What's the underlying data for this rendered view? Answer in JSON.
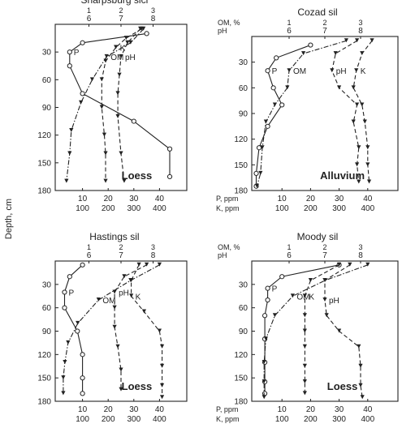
{
  "figure": {
    "ylabel": "Depth, cm",
    "bottom_label_p": "P, ppm",
    "bottom_label_k": "K, ppm",
    "top_label_om": "OM, %",
    "top_label_ph": "pH"
  },
  "chart_data": [
    {
      "type": "line",
      "title": "Sharpsburg sicl",
      "material": "Loess",
      "ylim": [
        0,
        180
      ],
      "yticks": [
        30,
        60,
        90,
        120,
        150,
        180
      ],
      "p_ticks": [
        10,
        20,
        30,
        40
      ],
      "k_ticks": [
        100,
        200,
        300,
        400
      ],
      "om_ticks": [
        1,
        2,
        3
      ],
      "ph_ticks": [
        6,
        7,
        8
      ],
      "series": [
        {
          "name": "P",
          "axis": "P",
          "depth": [
            10,
            20,
            30,
            45,
            75,
            105,
            135,
            165
          ],
          "values": [
            35,
            10,
            5,
            5,
            10,
            30,
            44,
            44
          ]
        },
        {
          "name": "K",
          "axis": "K",
          "depth": [
            5,
            15,
            25,
            40,
            60,
            90,
            120,
            140,
            170
          ],
          "values": [
            330,
            270,
            230,
            190,
            175,
            175,
            185,
            190,
            190
          ]
        },
        {
          "name": "pH",
          "axis": "pH",
          "depth": [
            5,
            20,
            35,
            55,
            75,
            100,
            140,
            170
          ],
          "values": [
            7.6,
            7.2,
            7.0,
            6.95,
            6.9,
            6.9,
            7.0,
            7.1
          ]
        },
        {
          "name": "OM",
          "axis": "OM",
          "depth": [
            5,
            20,
            35,
            60,
            85,
            115,
            140,
            170
          ],
          "values": [
            2.7,
            2.3,
            1.55,
            1.1,
            0.75,
            0.45,
            0.4,
            0.3
          ]
        }
      ]
    },
    {
      "type": "line",
      "title": "Cozad sil",
      "material": "Alluvium",
      "ylim": [
        0,
        180
      ],
      "yticks": [
        30,
        60,
        90,
        120,
        150,
        180
      ],
      "p_ticks": [
        10,
        20,
        30,
        40
      ],
      "k_ticks": [
        100,
        200,
        300,
        400
      ],
      "om_ticks": [
        1,
        2,
        3
      ],
      "ph_ticks": [
        6,
        7,
        8
      ],
      "series": [
        {
          "name": "P",
          "axis": "P",
          "depth": [
            10,
            25,
            40,
            60,
            80,
            105,
            130,
            160,
            175
          ],
          "values": [
            20,
            8,
            5,
            7,
            10,
            5,
            2,
            1,
            1
          ]
        },
        {
          "name": "K",
          "axis": "K",
          "depth": [
            5,
            20,
            40,
            60,
            80,
            100,
            130,
            150,
            170
          ],
          "values": [
            415,
            380,
            360,
            350,
            380,
            390,
            400,
            400,
            405
          ]
        },
        {
          "name": "pH",
          "axis": "pH",
          "depth": [
            5,
            20,
            40,
            60,
            80,
            100,
            130,
            150,
            170
          ],
          "values": [
            7.9,
            7.3,
            7.2,
            7.4,
            7.9,
            7.8,
            7.95,
            7.9,
            7.95
          ]
        },
        {
          "name": "OM",
          "axis": "OM",
          "depth": [
            5,
            20,
            40,
            60,
            80,
            100,
            130,
            160,
            175
          ],
          "values": [
            2.6,
            1.4,
            1.0,
            0.95,
            0.6,
            0.35,
            0.25,
            0.2,
            0.1
          ]
        }
      ]
    },
    {
      "type": "line",
      "title": "Hastings sil",
      "material": "Loess",
      "ylim": [
        0,
        180
      ],
      "yticks": [
        30,
        60,
        90,
        120,
        150,
        180
      ],
      "p_ticks": [
        10,
        20,
        30,
        40
      ],
      "k_ticks": [
        100,
        200,
        300,
        400
      ],
      "om_ticks": [
        1,
        2,
        3
      ],
      "ph_ticks": [
        6,
        7,
        8
      ],
      "series": [
        {
          "name": "P",
          "axis": "P",
          "depth": [
            5,
            20,
            40,
            60,
            90,
            120,
            150,
            170
          ],
          "values": [
            10,
            5,
            3,
            3,
            8,
            10,
            10,
            10
          ]
        },
        {
          "name": "K",
          "axis": "K",
          "depth": [
            5,
            25,
            45,
            65,
            90,
            110,
            135,
            160,
            175
          ],
          "values": [
            320,
            290,
            290,
            340,
            400,
            410,
            410,
            410,
            410
          ]
        },
        {
          "name": "pH",
          "axis": "pH",
          "depth": [
            5,
            20,
            40,
            60,
            85,
            110,
            140,
            165
          ],
          "values": [
            7.8,
            7.1,
            6.8,
            6.8,
            6.8,
            6.9,
            7.0,
            7.0
          ]
        },
        {
          "name": "OM",
          "axis": "OM",
          "depth": [
            5,
            25,
            50,
            80,
            105,
            130,
            150,
            170
          ],
          "values": [
            3.2,
            2.3,
            1.3,
            0.65,
            0.35,
            0.25,
            0.2,
            0.2
          ]
        }
      ]
    },
    {
      "type": "line",
      "title": "Moody sil",
      "material": "Loess",
      "ylim": [
        0,
        180
      ],
      "yticks": [
        30,
        60,
        90,
        120,
        150,
        180
      ],
      "p_ticks": [
        10,
        20,
        30,
        40
      ],
      "k_ticks": [
        100,
        200,
        300,
        400
      ],
      "om_ticks": [
        1,
        2,
        3
      ],
      "ph_ticks": [
        6,
        7,
        8
      ],
      "series": [
        {
          "name": "P",
          "axis": "P",
          "depth": [
            5,
            20,
            35,
            50,
            70,
            100,
            130,
            155,
            170
          ],
          "values": [
            30,
            10,
            5,
            5,
            4,
            4,
            4,
            4,
            4
          ]
        },
        {
          "name": "K",
          "axis": "K",
          "depth": [
            5,
            25,
            45,
            70,
            90,
            110,
            135,
            155,
            170
          ],
          "values": [
            300,
            200,
            180,
            180,
            180,
            180,
            180,
            180,
            180
          ]
        },
        {
          "name": "pH",
          "axis": "pH",
          "depth": [
            5,
            25,
            50,
            70,
            90,
            110,
            135,
            160,
            175
          ],
          "values": [
            7.7,
            7.0,
            7.0,
            7.05,
            7.4,
            7.95,
            8.0,
            8.0,
            8.05
          ]
        },
        {
          "name": "OM",
          "axis": "OM",
          "depth": [
            5,
            25,
            45,
            70,
            100,
            130,
            155,
            175
          ],
          "values": [
            3.2,
            2.0,
            1.1,
            0.6,
            0.35,
            0.3,
            0.3,
            0.3
          ]
        }
      ]
    }
  ]
}
